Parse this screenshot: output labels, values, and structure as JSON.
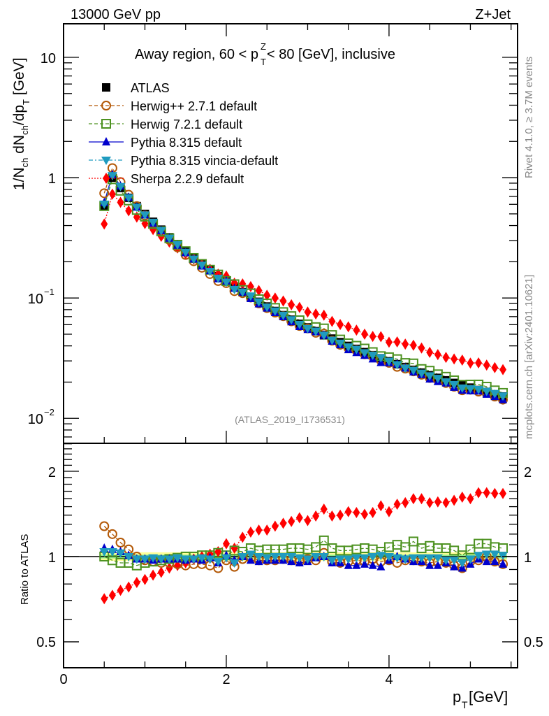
{
  "header": {
    "left_label": "13000 GeV pp",
    "right_label": "Z+Jet",
    "title_pre": "Away region, 60 < p",
    "title_sup": "Z",
    "title_sub": "T",
    "title_post": " < 80 [GeV], inclusive",
    "side_rivet": "Rivet 4.1.0, ≥ 3.7M events",
    "side_mcplots": "mcplots.cern.ch [arXiv:2401.10621]",
    "analysis_id": "(ATLAS_2019_I1736531)"
  },
  "chart_data": [
    {
      "type": "scatter",
      "panel": "main",
      "title": "Away region, 60 < pT^Z < 80 [GeV], inclusive",
      "xlabel": "p_T [GeV]",
      "ylabel": "1/N_ch dN_ch/dp_T [GeV]",
      "yscale": "log",
      "xlim": [
        0,
        5.58
      ],
      "ylim": [
        0.0062,
        19
      ],
      "x_ticks": [
        "0",
        "2",
        "4"
      ],
      "y_ticks": [
        "10^-2",
        "10^-1",
        "1",
        "10"
      ],
      "legend_position": "top-left",
      "x": [
        0.5,
        0.6,
        0.7,
        0.8,
        0.9,
        1.0,
        1.1,
        1.2,
        1.3,
        1.4,
        1.5,
        1.6,
        1.7,
        1.8,
        1.9,
        2.0,
        2.1,
        2.2,
        2.3,
        2.4,
        2.5,
        2.6,
        2.7,
        2.8,
        2.9,
        3.0,
        3.1,
        3.2,
        3.3,
        3.4,
        3.5,
        3.6,
        3.7,
        3.8,
        3.9,
        4.0,
        4.1,
        4.2,
        4.3,
        4.4,
        4.5,
        4.6,
        4.7,
        4.8,
        4.9,
        5.0,
        5.1,
        5.2,
        5.3,
        5.4
      ],
      "series": [
        {
          "name": "ATLAS",
          "color": "#000000",
          "marker": "square-filled",
          "line": "none",
          "values": [
            0.58,
            1.0,
            0.82,
            0.68,
            0.58,
            0.5,
            0.43,
            0.37,
            0.32,
            0.28,
            0.245,
            0.215,
            0.19,
            0.17,
            0.152,
            0.137,
            0.124,
            0.112,
            0.102,
            0.093,
            0.085,
            0.078,
            0.072,
            0.066,
            0.061,
            0.057,
            0.053,
            0.049,
            0.046,
            0.043,
            0.04,
            0.0378,
            0.0355,
            0.0335,
            0.0316,
            0.0298,
            0.0282,
            0.0267,
            0.0253,
            0.024,
            0.0228,
            0.0217,
            0.0207,
            0.0197,
            0.0188,
            0.018,
            0.0172,
            0.0165,
            0.0158,
            0.0152
          ]
        },
        {
          "name": "Herwig++ 2.7.1 default",
          "color": "#b35806",
          "marker": "circle-open",
          "line": "dashed",
          "ratio": [
            1.28,
            1.2,
            1.12,
            1.06,
            1.0,
            0.97,
            0.96,
            0.95,
            0.95,
            0.94,
            0.93,
            0.94,
            0.94,
            0.93,
            0.91,
            0.97,
            0.92,
            0.98,
            0.99,
            0.97,
            0.97,
            0.97,
            0.98,
            0.97,
            0.96,
            0.98,
            0.97,
            1.03,
            0.96,
            0.95,
            0.96,
            0.97,
            0.96,
            0.98,
            0.96,
            0.97,
            0.95,
            0.97,
            0.97,
            0.96,
            0.95,
            0.96,
            0.95,
            0.93,
            0.91,
            0.96,
            0.97,
            1.0,
            0.96,
            0.94
          ]
        },
        {
          "name": "Herwig 7.2.1 default",
          "color": "#4d9221",
          "marker": "square-open",
          "line": "dashed",
          "ratio": [
            1.0,
            0.97,
            0.95,
            0.95,
            0.93,
            0.95,
            0.96,
            0.97,
            0.98,
            0.99,
            1.0,
            1.0,
            1.01,
            1.01,
            1.03,
            1.01,
            1.05,
            1.04,
            1.07,
            1.05,
            1.06,
            1.06,
            1.06,
            1.07,
            1.07,
            1.06,
            1.08,
            1.14,
            1.07,
            1.05,
            1.05,
            1.06,
            1.07,
            1.06,
            1.04,
            1.08,
            1.1,
            1.08,
            1.13,
            1.07,
            1.09,
            1.07,
            1.07,
            1.05,
            1.01,
            1.06,
            1.11,
            1.11,
            1.08,
            1.07
          ]
        },
        {
          "name": "Pythia 8.315 default",
          "color": "#0000cc",
          "marker": "triangle-up-filled",
          "line": "solid",
          "ratio": [
            1.07,
            1.06,
            1.04,
            1.01,
            0.98,
            0.98,
            0.97,
            0.98,
            0.98,
            0.98,
            0.97,
            0.98,
            0.97,
            0.99,
            0.95,
            1.01,
            0.97,
            1.0,
            0.97,
            0.96,
            0.97,
            0.97,
            0.97,
            0.96,
            0.95,
            0.96,
            0.99,
            1.0,
            0.95,
            0.95,
            0.93,
            0.93,
            0.94,
            0.93,
            0.92,
            0.97,
            1.0,
            0.98,
            0.96,
            0.96,
            0.93,
            0.93,
            0.95,
            0.92,
            0.91,
            0.94,
            0.98,
            0.96,
            0.96,
            0.94
          ]
        },
        {
          "name": "Pythia 8.315 vincia-default",
          "color": "#1f9bbf",
          "marker": "triangle-down-filled",
          "line": "dashdot",
          "ratio": [
            1.04,
            1.04,
            1.03,
            1.0,
            0.98,
            0.98,
            0.99,
            0.98,
            0.98,
            0.99,
            0.98,
            0.98,
            0.99,
            0.98,
            0.96,
            0.99,
            0.95,
            1.0,
            1.02,
            1.0,
            0.99,
            1.0,
            1.0,
            1.0,
            0.99,
            0.98,
            1.0,
            1.0,
            0.97,
            0.98,
            0.98,
            0.99,
            0.99,
            1.0,
            1.01,
            1.0,
            0.99,
            0.98,
            0.99,
            0.99,
            0.99,
            0.99,
            0.97,
            0.97,
            0.95,
            0.98,
            1.01,
            1.02,
            1.02,
            1.01
          ]
        },
        {
          "name": "Sherpa 2.2.9 default",
          "color": "#ff0000",
          "marker": "diamond-filled",
          "line": "dotted",
          "ratio": [
            0.71,
            0.73,
            0.76,
            0.78,
            0.81,
            0.83,
            0.86,
            0.88,
            0.91,
            0.93,
            0.95,
            0.98,
            1.0,
            1.02,
            1.04,
            1.11,
            1.07,
            1.17,
            1.22,
            1.24,
            1.24,
            1.28,
            1.31,
            1.33,
            1.37,
            1.34,
            1.39,
            1.47,
            1.39,
            1.4,
            1.44,
            1.43,
            1.41,
            1.43,
            1.51,
            1.44,
            1.53,
            1.55,
            1.6,
            1.6,
            1.55,
            1.56,
            1.55,
            1.58,
            1.62,
            1.6,
            1.68,
            1.68,
            1.67,
            1.67
          ]
        }
      ]
    },
    {
      "type": "scatter",
      "panel": "ratio",
      "ylabel": "Ratio to ATLAS",
      "xlabel": "p_T [GeV]",
      "yscale": "log",
      "xlim": [
        0,
        5.58
      ],
      "ylim": [
        0.405,
        2.51
      ],
      "y_ticks": [
        "0.5",
        "1",
        "2"
      ],
      "x_ticks": [
        "0",
        "2",
        "4"
      ],
      "reference_band": {
        "inner_color": "#90ee90",
        "outer_color": "#ffff99",
        "inner_halfwidth": 0.015,
        "outer_halfwidth": 0.035
      }
    }
  ],
  "legend": {
    "entries": [
      "ATLAS",
      "Herwig++ 2.7.1 default",
      "Herwig 7.2.1 default",
      "Pythia 8.315 default",
      "Pythia 8.315 vincia-default",
      "Sherpa 2.2.9 default"
    ]
  },
  "axis_labels": {
    "main_y": "1/N",
    "main_y_ch1": "ch",
    "main_y_mid": " dN",
    "main_y_ch2": "ch",
    "main_y_end": "/dp",
    "main_y_T": "T",
    "main_y_unit": " [GeV]",
    "ratio_y": "Ratio to ATLAS",
    "x_p": "p",
    "x_T": "T",
    "x_unit": " [GeV]",
    "main_ticks": {
      "t10": "10",
      "t1": "1",
      "t01": "10",
      "t01e": "−1",
      "t001": "10",
      "t001e": "−2"
    },
    "ratio_ticks": {
      "t2": "2",
      "t1": "1",
      "t05": "0.5"
    },
    "x_ticks": {
      "t0": "0",
      "t2": "2",
      "t4": "4"
    }
  }
}
